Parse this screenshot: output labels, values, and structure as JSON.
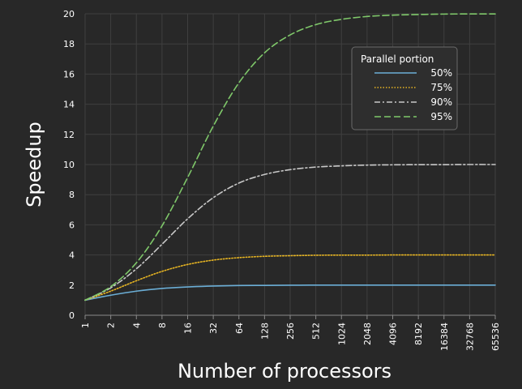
{
  "chart_data": {
    "type": "line",
    "title": "",
    "xlabel": "Number of processors",
    "ylabel": "Speedup",
    "x_scale": "log2",
    "x": [
      1,
      2,
      4,
      8,
      16,
      32,
      64,
      128,
      256,
      512,
      1024,
      2048,
      4096,
      8192,
      16384,
      32768,
      65536
    ],
    "x_tick_labels": [
      "1",
      "2",
      "4",
      "8",
      "16",
      "32",
      "64",
      "128",
      "256",
      "512",
      "1024",
      "2048",
      "4096",
      "8192",
      "16384",
      "32768",
      "65536"
    ],
    "ylim": [
      0,
      20
    ],
    "y_ticks": [
      0,
      2,
      4,
      6,
      8,
      10,
      12,
      14,
      16,
      18,
      20
    ],
    "grid": true,
    "legend": {
      "title": "Parallel portion",
      "placement": "top-right"
    },
    "series": [
      {
        "name": "50%",
        "color": "#6baed6",
        "dash": "solid",
        "values": [
          1.0,
          1.33,
          1.6,
          1.78,
          1.88,
          1.94,
          1.97,
          1.98,
          1.99,
          2.0,
          2.0,
          2.0,
          2.0,
          2.0,
          2.0,
          2.0,
          2.0
        ]
      },
      {
        "name": "75%",
        "color": "#e6b422",
        "dash": "dotted",
        "values": [
          1.0,
          1.6,
          2.29,
          2.91,
          3.37,
          3.66,
          3.82,
          3.91,
          3.95,
          3.98,
          3.99,
          3.99,
          4.0,
          4.0,
          4.0,
          4.0,
          4.0
        ]
      },
      {
        "name": "90%",
        "color": "#c8c8c8",
        "dash": "dashdot",
        "values": [
          1.0,
          1.82,
          3.08,
          4.71,
          6.4,
          7.8,
          8.77,
          9.34,
          9.66,
          9.83,
          9.91,
          9.96,
          9.98,
          9.99,
          9.99,
          10.0,
          10.0
        ]
      },
      {
        "name": "95%",
        "color": "#7fc86a",
        "dash": "dashed",
        "values": [
          1.0,
          1.9,
          3.48,
          5.93,
          9.14,
          12.55,
          15.42,
          17.41,
          18.6,
          19.28,
          19.63,
          19.82,
          19.91,
          19.95,
          19.98,
          19.99,
          19.99
        ]
      }
    ]
  }
}
